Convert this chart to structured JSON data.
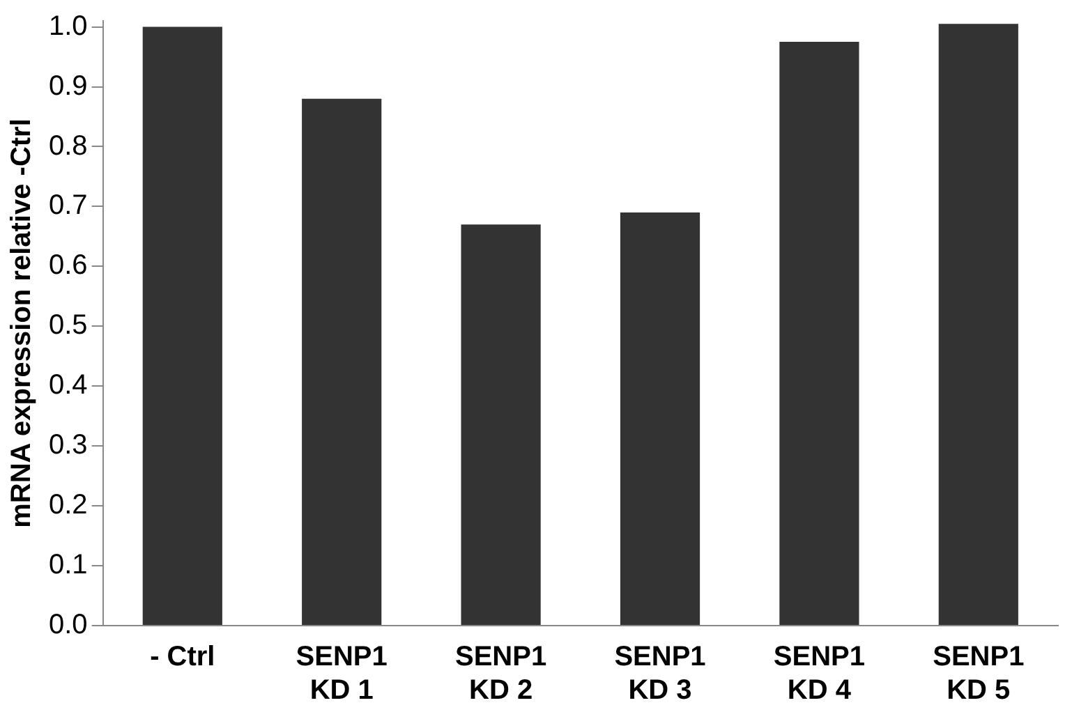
{
  "chart_data": {
    "type": "bar",
    "ylabel": "mRNA expression relative -Ctrl",
    "categories": [
      "- Ctrl",
      "SENP1\nKD 1",
      "SENP1\nKD 2",
      "SENP1\nKD 3",
      "SENP1\nKD 4",
      "SENP1\nKD 5"
    ],
    "values": [
      1.0,
      0.88,
      0.67,
      0.69,
      0.975,
      1.005
    ],
    "color": "#333333",
    "ylim": [
      0,
      1.01
    ],
    "yticks": [
      {
        "value": 0,
        "label": "0.0"
      },
      0.1,
      0.2,
      0.3,
      0.4,
      0.5,
      0.6,
      0.7,
      0.8,
      0.9,
      {
        "value": 1,
        "label": "1.0"
      }
    ],
    "grid": false,
    "legend": false
  }
}
